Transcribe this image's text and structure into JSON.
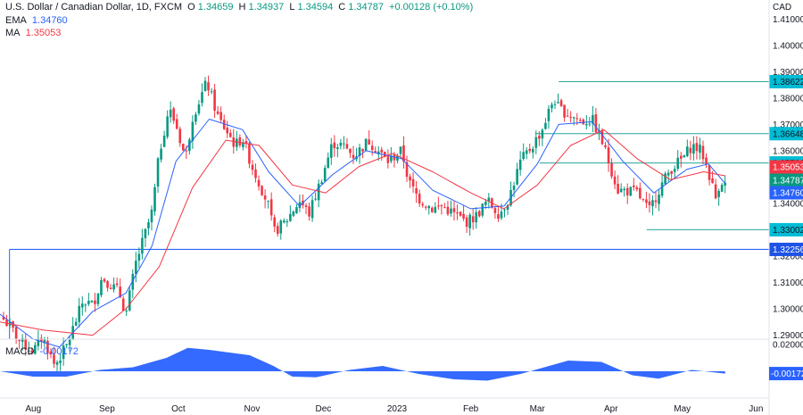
{
  "header": {
    "symbol": "U.S. Dollar / Canadian Dollar, 1D, FXCM",
    "o_label": "O",
    "o": "1.34659",
    "h_label": "H",
    "h": "1.34937",
    "l_label": "L",
    "l": "1.34594",
    "c_label": "C",
    "c": "1.34787",
    "change": "+0.00128 (+0.10%)",
    "ema_label": "EMA",
    "ema": "1.34760",
    "ma_label": "MA",
    "ma": "1.35053",
    "macd_label": "MACD",
    "macd": "-0.00172",
    "currency": "CAD"
  },
  "colors": {
    "up": "#089981",
    "down": "#f23645",
    "ema": "#2962ff",
    "ma": "#f23645",
    "support_line": "#2962ff",
    "level_box": "#00bcd4",
    "level_line": "#26a69a"
  },
  "chart_data": {
    "type": "candlestick",
    "x_labels": [
      "Aug",
      "Sep",
      "Oct",
      "Nov",
      "Dec",
      "2023",
      "Feb",
      "Mar",
      "Apr",
      "May",
      "Jun"
    ],
    "y_ticks": [
      "1.41000",
      "1.40000",
      "1.39000",
      "1.38000",
      "1.37000",
      "1.36000",
      "1.35000",
      "1.34000",
      "1.33000",
      "1.32000",
      "1.31000",
      "1.30000",
      "1.29000"
    ],
    "ylim": [
      1.2885,
      1.4145
    ],
    "price_path": [
      [
        "2022-07-18",
        1.2975
      ],
      [
        "2022-07-22",
        1.2935
      ],
      [
        "2022-07-27",
        1.287
      ],
      [
        "2022-08-01",
        1.284
      ],
      [
        "2022-08-05",
        1.2895
      ],
      [
        "2022-08-10",
        1.2785
      ],
      [
        "2022-08-15",
        1.286
      ],
      [
        "2022-08-22",
        1.303
      ],
      [
        "2022-08-26",
        1.3015
      ],
      [
        "2022-08-30",
        1.312
      ],
      [
        "2022-09-06",
        1.3065
      ],
      [
        "2022-09-09",
        1.298
      ],
      [
        "2022-09-13",
        1.317
      ],
      [
        "2022-09-20",
        1.337
      ],
      [
        "2022-09-23",
        1.359
      ],
      [
        "2022-09-27",
        1.376
      ],
      [
        "2022-09-30",
        1.37
      ],
      [
        "2022-10-04",
        1.357
      ],
      [
        "2022-10-07",
        1.373
      ],
      [
        "2022-10-13",
        1.386
      ],
      [
        "2022-10-18",
        1.372
      ],
      [
        "2022-10-21",
        1.368
      ],
      [
        "2022-10-25",
        1.362
      ],
      [
        "2022-10-28",
        1.365
      ],
      [
        "2022-11-01",
        1.354
      ],
      [
        "2022-11-04",
        1.348
      ],
      [
        "2022-11-08",
        1.339
      ],
      [
        "2022-11-10",
        1.329
      ],
      [
        "2022-11-15",
        1.333
      ],
      [
        "2022-11-21",
        1.341
      ],
      [
        "2022-11-25",
        1.336
      ],
      [
        "2022-11-30",
        1.349
      ],
      [
        "2022-12-05",
        1.363
      ],
      [
        "2022-12-09",
        1.362
      ],
      [
        "2022-12-14",
        1.358
      ],
      [
        "2022-12-20",
        1.364
      ],
      [
        "2022-12-23",
        1.361
      ],
      [
        "2022-12-28",
        1.356
      ],
      [
        "2023-01-03",
        1.36
      ],
      [
        "2023-01-06",
        1.348
      ],
      [
        "2023-01-10",
        1.342
      ],
      [
        "2023-01-16",
        1.338
      ],
      [
        "2023-01-20",
        1.339
      ],
      [
        "2023-01-25",
        1.336
      ],
      [
        "2023-01-30",
        1.333
      ],
      [
        "2023-02-03",
        1.335
      ],
      [
        "2023-02-08",
        1.341
      ],
      [
        "2023-02-13",
        1.336
      ],
      [
        "2023-02-17",
        1.342
      ],
      [
        "2023-02-22",
        1.356
      ],
      [
        "2023-02-27",
        1.362
      ],
      [
        "2023-03-03",
        1.368
      ],
      [
        "2023-03-08",
        1.38
      ],
      [
        "2023-03-10",
        1.376
      ],
      [
        "2023-03-14",
        1.374
      ],
      [
        "2023-03-20",
        1.371
      ],
      [
        "2023-03-24",
        1.372
      ],
      [
        "2023-03-28",
        1.364
      ],
      [
        "2023-03-31",
        1.356
      ],
      [
        "2023-04-04",
        1.345
      ],
      [
        "2023-04-07",
        1.345
      ],
      [
        "2023-04-12",
        1.344
      ],
      [
        "2023-04-17",
        1.337
      ],
      [
        "2023-04-21",
        1.345
      ],
      [
        "2023-04-26",
        1.353
      ],
      [
        "2023-05-01",
        1.357
      ],
      [
        "2023-05-05",
        1.362
      ],
      [
        "2023-05-09",
        1.36
      ],
      [
        "2023-05-12",
        1.352
      ],
      [
        "2023-05-15",
        1.342
      ],
      [
        "2023-05-17",
        1.349
      ],
      [
        "2023-05-19",
        1.348
      ]
    ],
    "series": [
      {
        "name": "EMA",
        "values": [
          [
            "2022-07-18",
            1.298
          ],
          [
            "2022-08-01",
            1.2885
          ],
          [
            "2022-08-12",
            1.2855
          ],
          [
            "2022-08-26",
            1.299
          ],
          [
            "2022-09-09",
            1.306
          ],
          [
            "2022-09-20",
            1.324
          ],
          [
            "2022-09-30",
            1.356
          ],
          [
            "2022-10-14",
            1.372
          ],
          [
            "2022-10-28",
            1.368
          ],
          [
            "2022-11-08",
            1.352
          ],
          [
            "2022-11-21",
            1.339
          ],
          [
            "2022-12-05",
            1.351
          ],
          [
            "2022-12-19",
            1.36
          ],
          [
            "2023-01-03",
            1.357
          ],
          [
            "2023-01-16",
            1.345
          ],
          [
            "2023-02-01",
            1.338
          ],
          [
            "2023-02-15",
            1.339
          ],
          [
            "2023-03-01",
            1.355
          ],
          [
            "2023-03-10",
            1.37
          ],
          [
            "2023-03-24",
            1.371
          ],
          [
            "2023-04-06",
            1.356
          ],
          [
            "2023-04-19",
            1.344
          ],
          [
            "2023-05-03",
            1.353
          ],
          [
            "2023-05-12",
            1.355
          ],
          [
            "2023-05-19",
            1.3476
          ]
        ]
      },
      {
        "name": "MA",
        "values": [
          [
            "2022-07-18",
            1.295
          ],
          [
            "2022-08-05",
            1.292
          ],
          [
            "2022-08-26",
            1.29
          ],
          [
            "2022-09-09",
            1.3
          ],
          [
            "2022-09-23",
            1.316
          ],
          [
            "2022-10-07",
            1.346
          ],
          [
            "2022-10-21",
            1.364
          ],
          [
            "2022-11-04",
            1.362
          ],
          [
            "2022-11-18",
            1.347
          ],
          [
            "2022-12-02",
            1.344
          ],
          [
            "2022-12-16",
            1.354
          ],
          [
            "2022-12-30",
            1.359
          ],
          [
            "2023-01-16",
            1.352
          ],
          [
            "2023-02-01",
            1.344
          ],
          [
            "2023-02-15",
            1.338
          ],
          [
            "2023-03-01",
            1.347
          ],
          [
            "2023-03-15",
            1.362
          ],
          [
            "2023-03-29",
            1.368
          ],
          [
            "2023-04-12",
            1.357
          ],
          [
            "2023-04-26",
            1.349
          ],
          [
            "2023-05-10",
            1.352
          ],
          [
            "2023-05-19",
            1.3505
          ]
        ]
      }
    ],
    "horizontal_levels": [
      {
        "label": "1.38622",
        "value": 1.38622,
        "start": "2023-03-10"
      },
      {
        "label": "1.36648",
        "value": 1.36648,
        "start": "2023-02-28"
      },
      {
        "label": "1.35536",
        "value": 1.35536,
        "start": "2023-03-02"
      },
      {
        "label": "1.33002",
        "value": 1.33002,
        "start": "2023-04-16"
      },
      {
        "label": "1.32256",
        "value": 1.32256,
        "start": "2022-07-22",
        "style": "support"
      }
    ],
    "price_tags": [
      {
        "label": "1.35053",
        "value": 1.35053,
        "kind": "ma"
      },
      {
        "label": "1.34787",
        "value": 1.34787,
        "kind": "close"
      },
      {
        "label": "1.34760",
        "value": 1.3476,
        "kind": "ema"
      }
    ],
    "macd": {
      "ticks": [
        "0.02000",
        "-0.00172"
      ],
      "ylim": [
        -0.02,
        0.022
      ],
      "values": [
        [
          "2022-07-18",
          0.0
        ],
        [
          "2022-08-01",
          -0.004
        ],
        [
          "2022-08-15",
          -0.004
        ],
        [
          "2022-08-29",
          0.001
        ],
        [
          "2022-09-12",
          0.003
        ],
        [
          "2022-09-26",
          0.01
        ],
        [
          "2022-10-05",
          0.0175
        ],
        [
          "2022-10-14",
          0.016
        ],
        [
          "2022-10-31",
          0.012
        ],
        [
          "2022-11-10",
          0.004
        ],
        [
          "2022-11-18",
          -0.004
        ],
        [
          "2022-11-28",
          -0.0045
        ],
        [
          "2022-12-12",
          0.001
        ],
        [
          "2022-12-26",
          0.004
        ],
        [
          "2023-01-10",
          -0.002
        ],
        [
          "2023-01-25",
          -0.006
        ],
        [
          "2023-02-08",
          -0.007
        ],
        [
          "2023-02-22",
          -0.002
        ],
        [
          "2023-03-06",
          0.004
        ],
        [
          "2023-03-14",
          0.008
        ],
        [
          "2023-03-28",
          0.007
        ],
        [
          "2023-04-10",
          -0.003
        ],
        [
          "2023-04-21",
          -0.0055
        ],
        [
          "2023-05-05",
          0.001
        ],
        [
          "2023-05-19",
          -0.0017
        ]
      ]
    }
  }
}
